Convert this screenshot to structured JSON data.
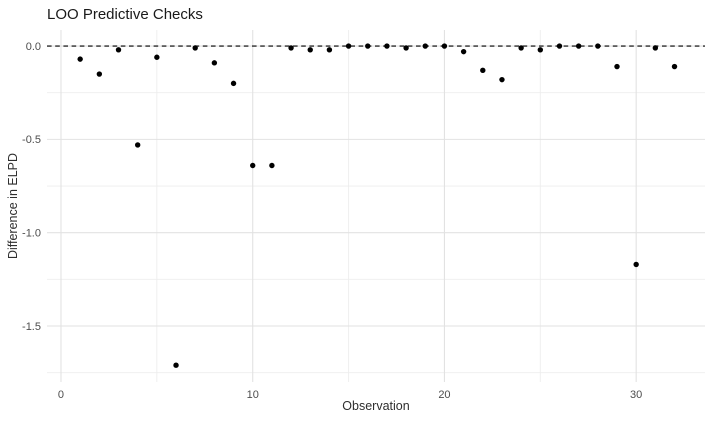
{
  "title": "LOO Predictive Checks",
  "axes": {
    "x_label": "Observation",
    "y_label": "Difference in ELPD",
    "x_tick_labels": [
      "0",
      "10",
      "20",
      "30"
    ],
    "y_tick_labels": [
      "0.0",
      "-0.5",
      "-1.0",
      "-1.5"
    ]
  },
  "chart_data": {
    "type": "scatter",
    "title": "LOO Predictive Checks",
    "xlabel": "Observation",
    "ylabel": "Difference in ELPD",
    "x": [
      1,
      2,
      3,
      4,
      5,
      6,
      7,
      8,
      9,
      10,
      11,
      12,
      13,
      14,
      15,
      16,
      17,
      18,
      19,
      20,
      21,
      22,
      23,
      24,
      25,
      26,
      27,
      28,
      29,
      30,
      31,
      32
    ],
    "y": [
      -0.07,
      -0.15,
      -0.02,
      -0.53,
      -0.06,
      -1.71,
      -0.01,
      -0.09,
      -0.2,
      -0.64,
      -0.64,
      -0.01,
      -0.02,
      -0.02,
      0.0,
      0.0,
      0.0,
      -0.01,
      0.0,
      0.0,
      -0.03,
      -0.13,
      -0.18,
      -0.01,
      -0.02,
      0.0,
      0.0,
      0.0,
      -0.11,
      -1.17,
      -0.01,
      -0.11
    ],
    "xlim": [
      -0.73,
      33.59
    ],
    "ylim": [
      -1.8,
      0.086
    ],
    "x_major_ticks": [
      0,
      10,
      20,
      30
    ],
    "x_minor_ticks": [
      5,
      15,
      25
    ],
    "y_major_ticks": [
      0,
      -0.5,
      -1.0,
      -1.5
    ],
    "y_minor_ticks": [
      -0.25,
      -0.75,
      -1.25,
      -1.75
    ],
    "reference_line": {
      "y": 0,
      "style": "dashed"
    },
    "grid": true,
    "legend": "none",
    "colors": {
      "point": "#000000",
      "reference_line": "#2b2b2b",
      "grid_major": "#e2e2e2",
      "grid_minor": "#ededed",
      "tick_label": "#4d4d4d",
      "background": "#ffffff"
    }
  }
}
